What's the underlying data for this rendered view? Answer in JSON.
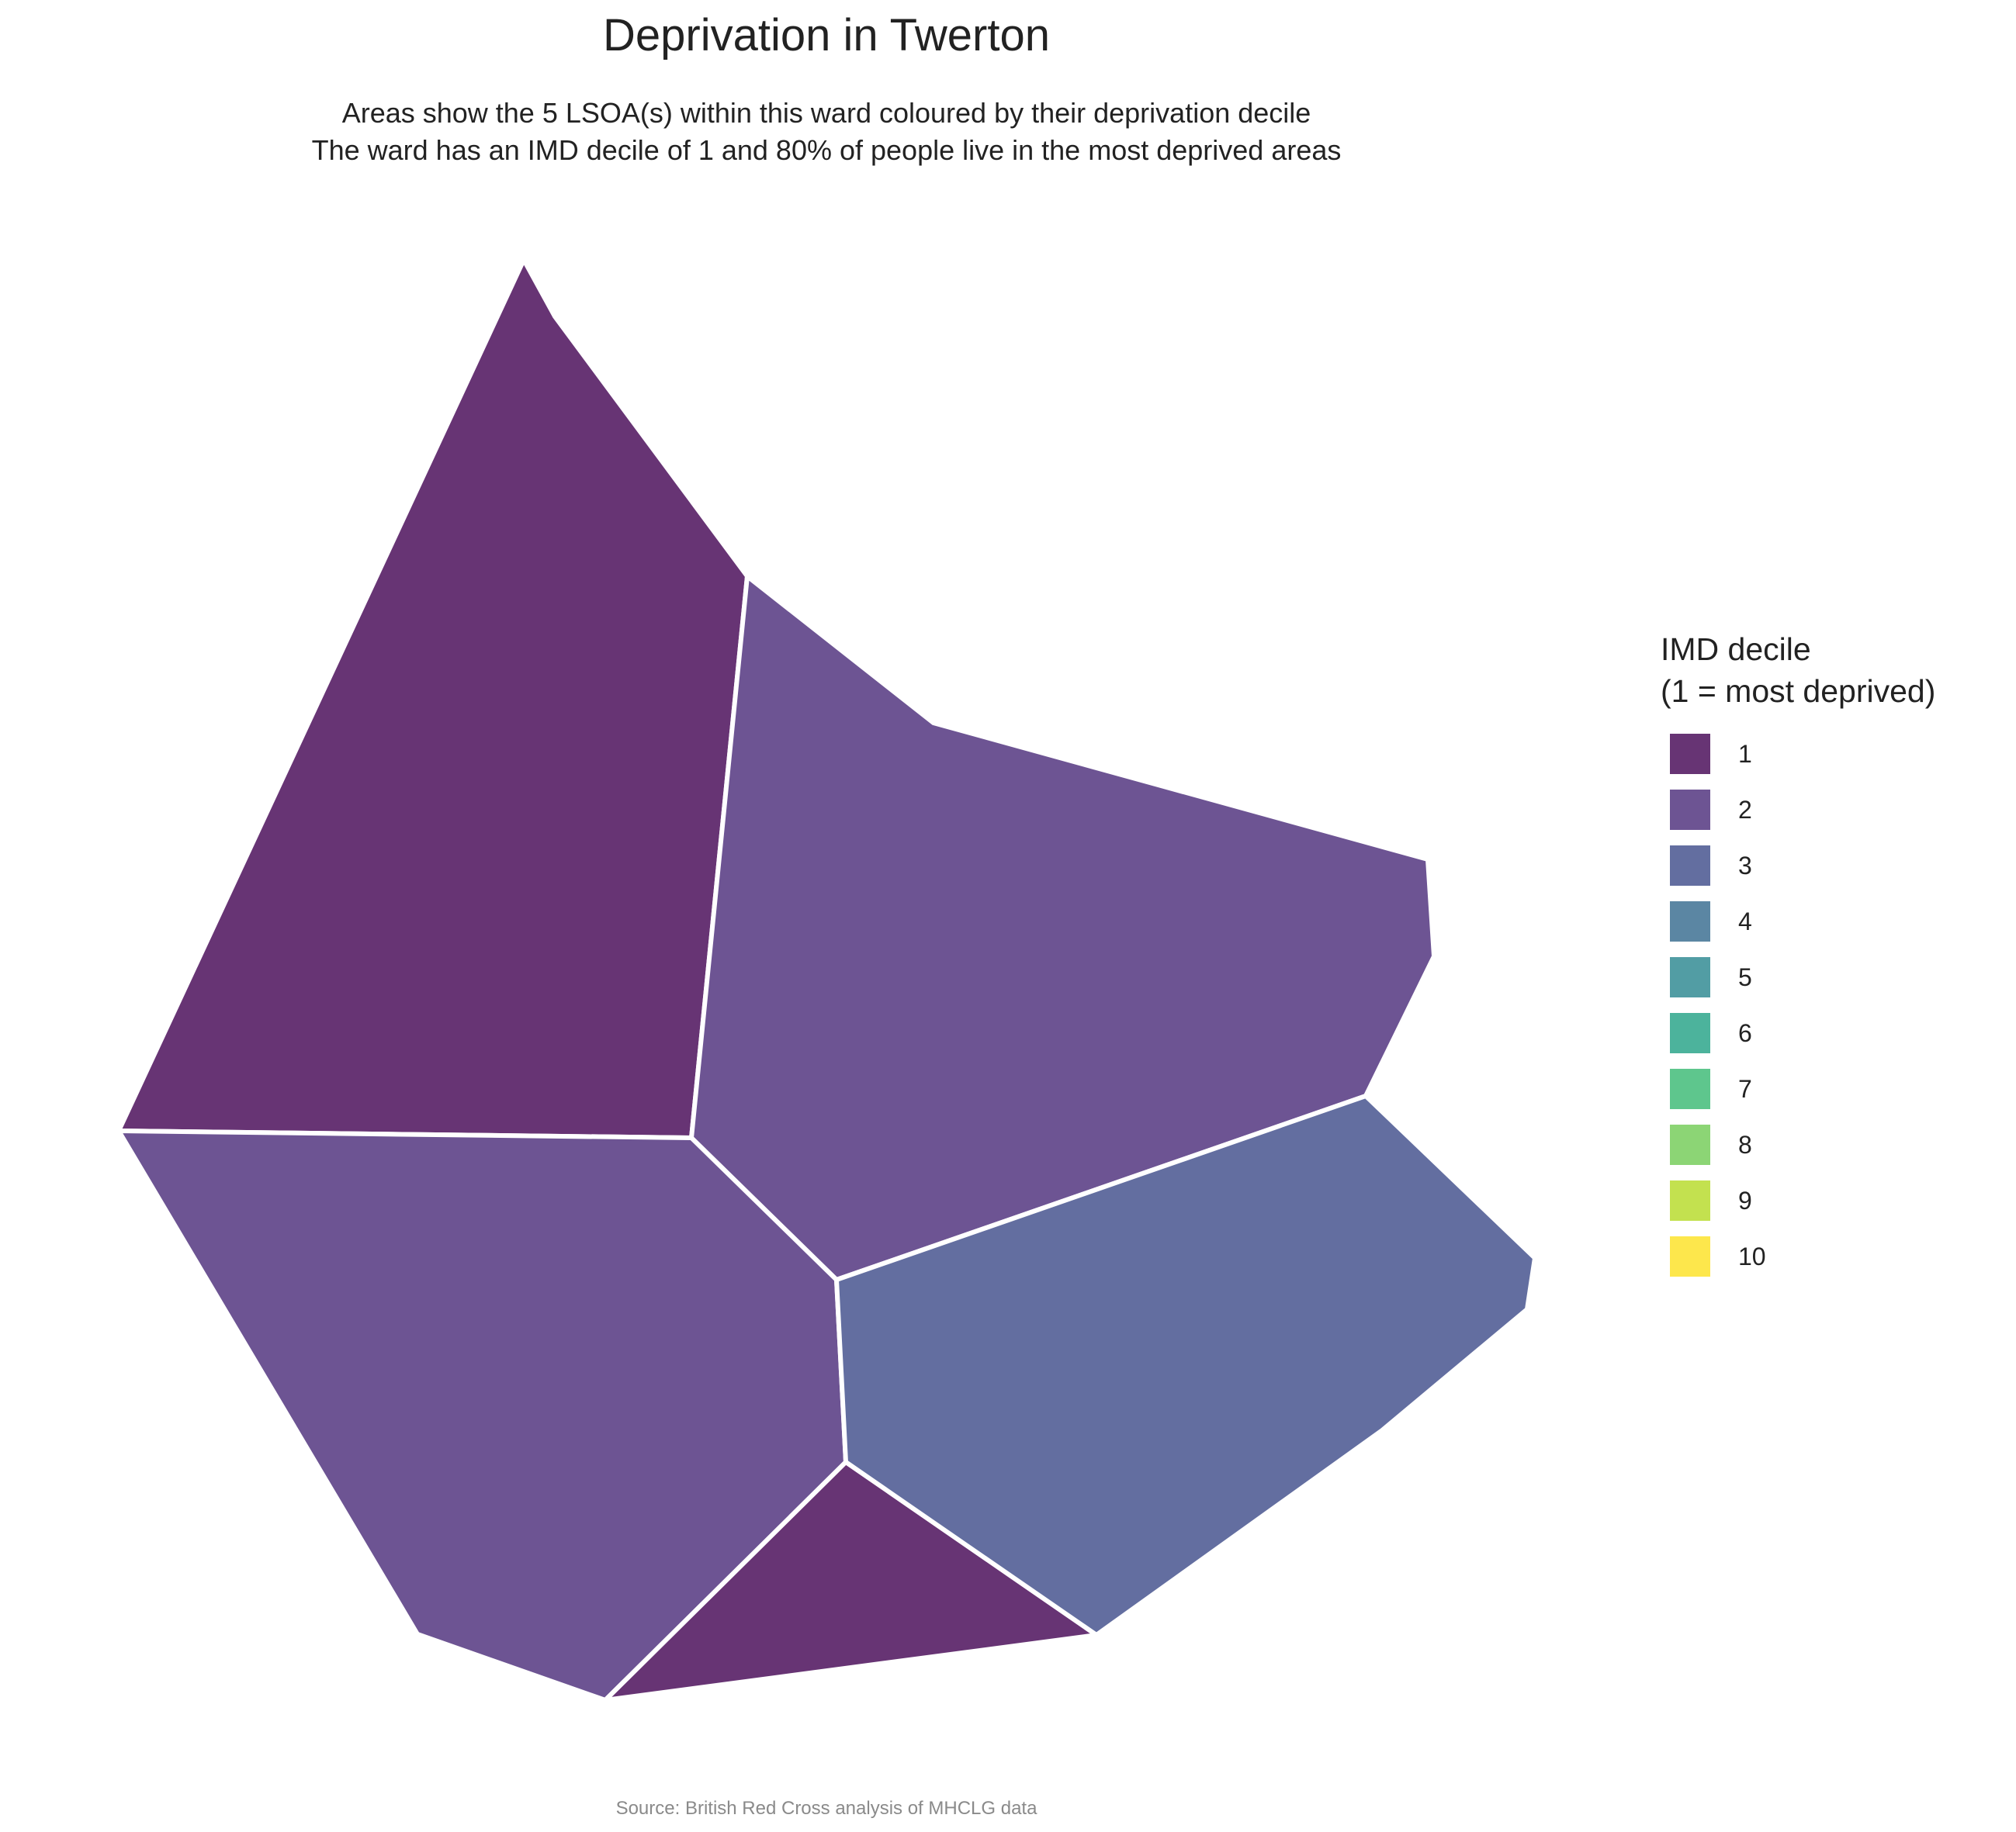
{
  "title": "Deprivation in Twerton",
  "subtitle_line1": "Areas show the 5 LSOA(s) within this ward coloured by their deprivation decile",
  "subtitle_line2": "The ward has an IMD decile of 1 and 80% of people live in the most deprived areas",
  "legend": {
    "title_line1": "IMD decile",
    "title_line2": "(1 = most deprived)",
    "items": [
      {
        "label": "1",
        "color": "#673474"
      },
      {
        "label": "2",
        "color": "#6D5493"
      },
      {
        "label": "3",
        "color": "#636EA0"
      },
      {
        "label": "4",
        "color": "#5B86A3"
      },
      {
        "label": "5",
        "color": "#529DA4"
      },
      {
        "label": "6",
        "color": "#4CB39C"
      },
      {
        "label": "7",
        "color": "#5EC68D"
      },
      {
        "label": "8",
        "color": "#8CD575"
      },
      {
        "label": "9",
        "color": "#C3E14F"
      },
      {
        "label": "10",
        "color": "#FDE74C"
      }
    ]
  },
  "areas": [
    {
      "name": "lsoa-north-west",
      "decile": 1,
      "color": "#673474"
    },
    {
      "name": "lsoa-north-east",
      "decile": 2,
      "color": "#6D5493"
    },
    {
      "name": "lsoa-south-west",
      "decile": 2,
      "color": "#6D5493"
    },
    {
      "name": "lsoa-south",
      "decile": 1,
      "color": "#673474"
    },
    {
      "name": "lsoa-east",
      "decile": 3,
      "color": "#636EA0"
    }
  ],
  "caption": "Source: British Red Cross analysis of MHCLG data"
}
